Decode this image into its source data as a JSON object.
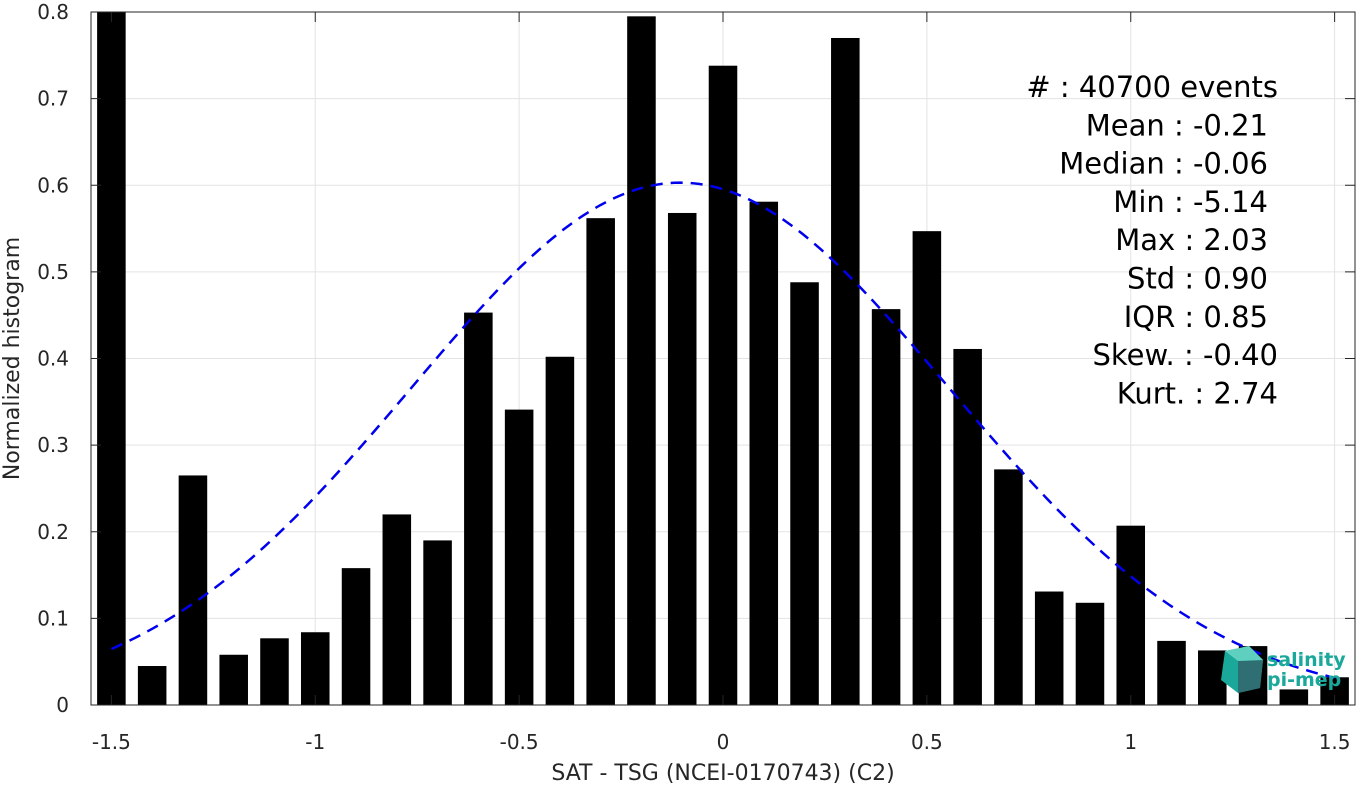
{
  "chart_data": {
    "type": "bar",
    "xlabel": "SAT - TSG (NCEI-0170743) (C2)",
    "ylabel": "Normalized histogram",
    "xlim": [
      -1.55,
      1.55
    ],
    "ylim": [
      0,
      0.8
    ],
    "xticks": [
      -1.5,
      -1,
      -0.5,
      0,
      0.5,
      1,
      1.5
    ],
    "xtick_labels": [
      "-1.5",
      "-1",
      "-0.5",
      "0",
      "0.5",
      "1",
      "1.5"
    ],
    "yticks": [
      0,
      0.1,
      0.2,
      0.3,
      0.4,
      0.5,
      0.6,
      0.7,
      0.8
    ],
    "ytick_labels": [
      "0",
      "0.1",
      "0.2",
      "0.3",
      "0.4",
      "0.5",
      "0.6",
      "0.7",
      "0.8"
    ],
    "grid": true,
    "bar_color": "#000000",
    "bar_width": 0.07,
    "x": [
      -1.5,
      -1.4,
      -1.3,
      -1.2,
      -1.1,
      -1.0,
      -0.9,
      -0.8,
      -0.7,
      -0.6,
      -0.5,
      -0.4,
      -0.3,
      -0.2,
      -0.1,
      0.0,
      0.1,
      0.2,
      0.3,
      0.4,
      0.5,
      0.6,
      0.7,
      0.8,
      0.9,
      1.0,
      1.1,
      1.2,
      1.3,
      1.4,
      1.5
    ],
    "values": [
      0.8,
      0.045,
      0.265,
      0.058,
      0.077,
      0.084,
      0.158,
      0.22,
      0.19,
      0.453,
      0.341,
      0.402,
      0.562,
      0.795,
      0.568,
      0.738,
      0.581,
      0.488,
      0.77,
      0.457,
      0.547,
      0.411,
      0.272,
      0.131,
      0.118,
      0.207,
      0.074,
      0.063,
      0.068,
      0.018,
      0.032
    ],
    "fit_curve": {
      "type": "gaussian",
      "style": "dashed",
      "color": "#0000ee",
      "mean": -0.105,
      "sigma": 0.66,
      "peak": 0.603,
      "x_range": [
        -1.5,
        1.5
      ]
    },
    "stats": [
      {
        "label": "#  : 40700 events"
      },
      {
        "label": "Mean : -0.21"
      },
      {
        "label": "Median : -0.06"
      },
      {
        "label": "Min : -5.14"
      },
      {
        "label": "Max : 2.03"
      },
      {
        "label": "Std : 0.90"
      },
      {
        "label": "IQR : 0.85"
      },
      {
        "label": "Skew. : -0.40"
      },
      {
        "label": "Kurt. : 2.74"
      }
    ]
  },
  "logo": {
    "line1": "salinity",
    "line2": "pi-mep",
    "colors": {
      "primary": "#1aa89a",
      "secondary": "#2f6f73"
    }
  }
}
